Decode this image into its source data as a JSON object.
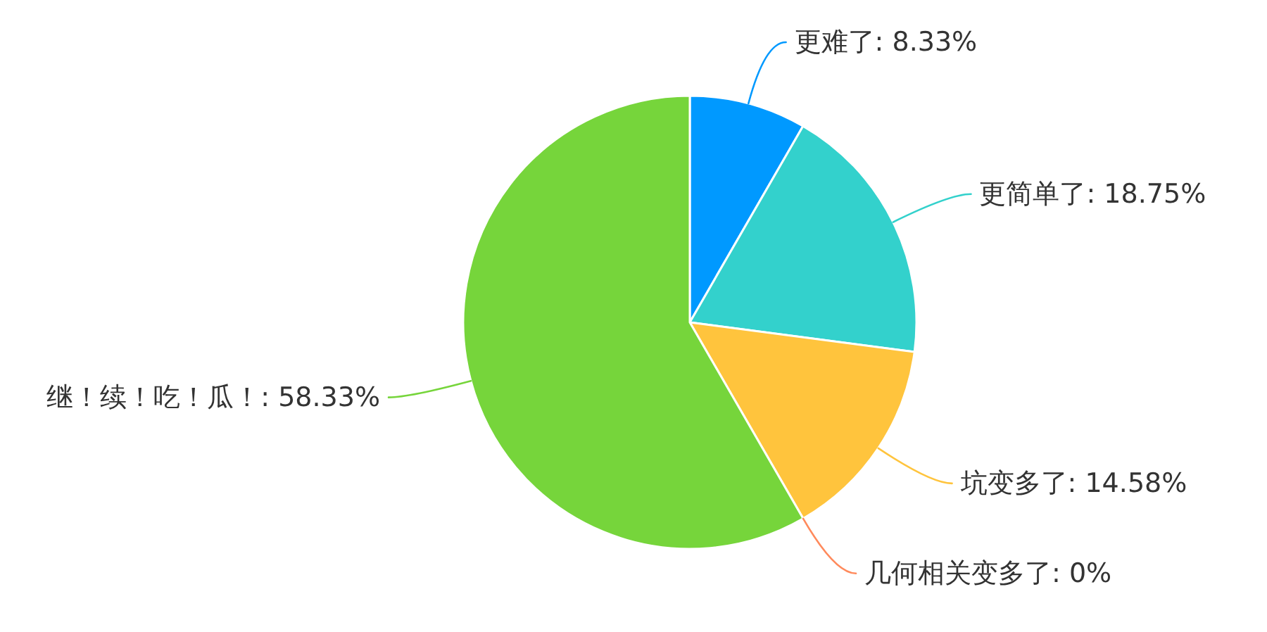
{
  "chart_data": {
    "type": "pie",
    "categories": [
      "更难了: 8.33%",
      "更简单了: 18.75%",
      "坑变多了: 14.58%",
      "几何相关变多了: 0%",
      "继！续！吃！瓜！: 58.33%"
    ],
    "values": [
      8.33,
      18.75,
      14.58,
      0,
      58.33
    ],
    "colors": [
      "#0099ff",
      "#33d1cc",
      "#ffc43d",
      "#ff8a5c",
      "#76d53b"
    ]
  }
}
